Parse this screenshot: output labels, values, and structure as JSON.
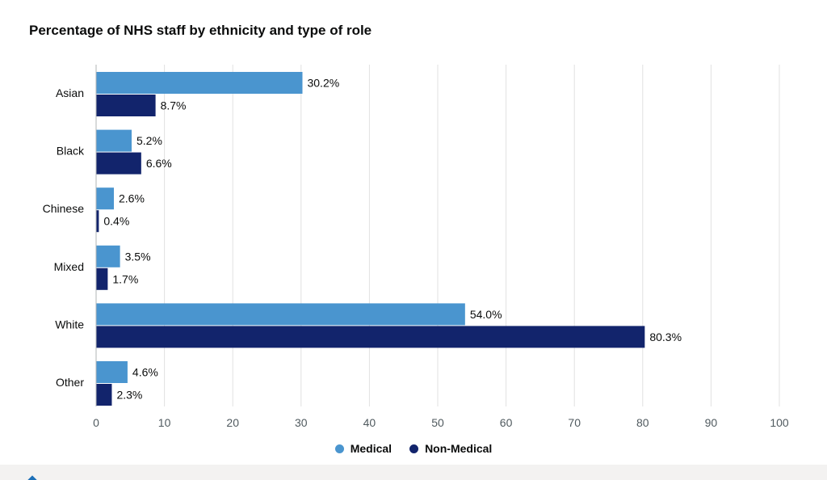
{
  "chart_data": {
    "type": "bar",
    "orientation": "horizontal",
    "title": "Percentage of NHS staff by ethnicity and type of role",
    "categories": [
      "Asian",
      "Black",
      "Chinese",
      "Mixed",
      "White",
      "Other"
    ],
    "series": [
      {
        "name": "Medical",
        "color": "#4a95cf",
        "values": [
          30.2,
          5.2,
          2.6,
          3.5,
          54.0,
          4.6
        ],
        "labels": [
          "30.2%",
          "5.2%",
          "2.6%",
          "3.5%",
          "54.0%",
          "4.6%"
        ]
      },
      {
        "name": "Non-Medical",
        "color": "#12246c",
        "values": [
          8.7,
          6.6,
          0.4,
          1.7,
          80.3,
          2.3
        ],
        "labels": [
          "8.7%",
          "6.6%",
          "0.4%",
          "1.7%",
          "80.3%",
          "2.3%"
        ]
      }
    ],
    "xlim": [
      0,
      100
    ],
    "xticks": [
      "0",
      "10",
      "20",
      "30",
      "40",
      "50",
      "60",
      "70",
      "80",
      "90",
      "100"
    ],
    "grid": true,
    "legend_position": "bottom"
  }
}
